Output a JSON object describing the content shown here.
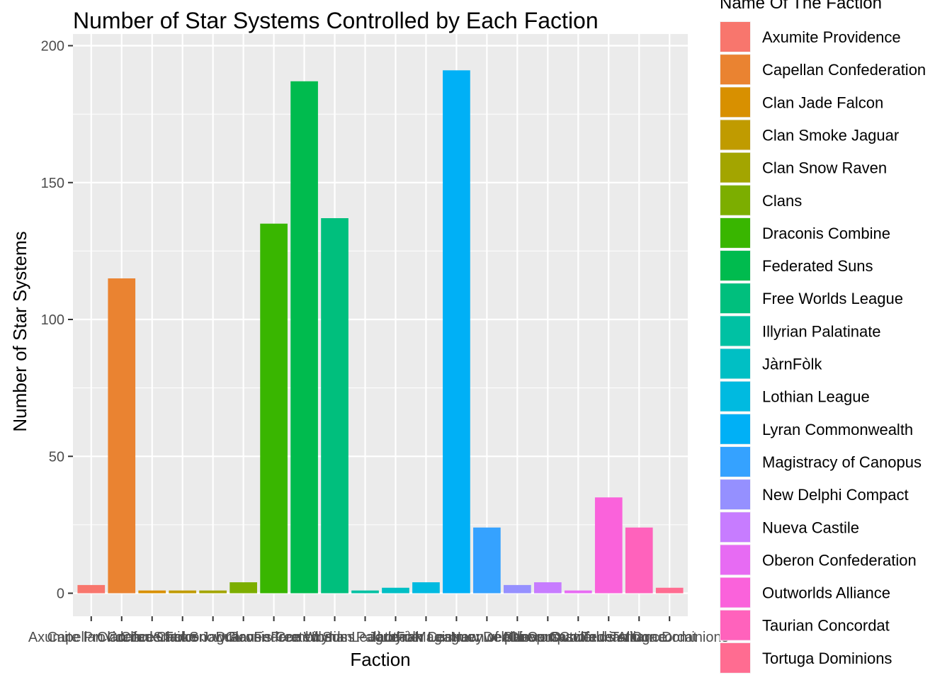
{
  "chart_data": {
    "type": "bar",
    "title": "Number of Star Systems Controlled by Each Faction",
    "xlabel": "Faction",
    "ylabel": "Number of Star Systems",
    "legend_title": "Name Of The Faction",
    "legend_position": "right",
    "grid": true,
    "ylim": [
      0,
      200
    ],
    "yticks": [
      0,
      50,
      100,
      150,
      200
    ],
    "categories": [
      "Axumite Providence",
      "Capellan Confederation",
      "Clan Jade Falcon",
      "Clan Smoke Jaguar",
      "Clan Snow Raven",
      "Clans",
      "Draconis Combine",
      "Federated Suns",
      "Free Worlds League",
      "Illyrian Palatinate",
      "JàrnFòlk",
      "Lothian League",
      "Lyran Commonwealth",
      "Magistracy of Canopus",
      "New Delphi Compact",
      "Nueva Castile",
      "Oberon Confederation",
      "Outworlds Alliance",
      "Taurian Concordat",
      "Tortuga Dominions"
    ],
    "values": [
      3,
      115,
      1,
      1,
      1,
      4,
      135,
      187,
      137,
      1,
      2,
      4,
      191,
      24,
      3,
      4,
      1,
      35,
      24,
      2
    ],
    "colors": [
      "#F8766D",
      "#EA8331",
      "#D89000",
      "#C09B00",
      "#A3A500",
      "#7CAE00",
      "#39B600",
      "#00BB4E",
      "#00BF7D",
      "#00C1A3",
      "#00BFC4",
      "#00BAE0",
      "#00B0F6",
      "#35A2FF",
      "#9590FF",
      "#C77CFF",
      "#E76BF3",
      "#FA62DB",
      "#FF62BC",
      "#FF6C91"
    ]
  }
}
